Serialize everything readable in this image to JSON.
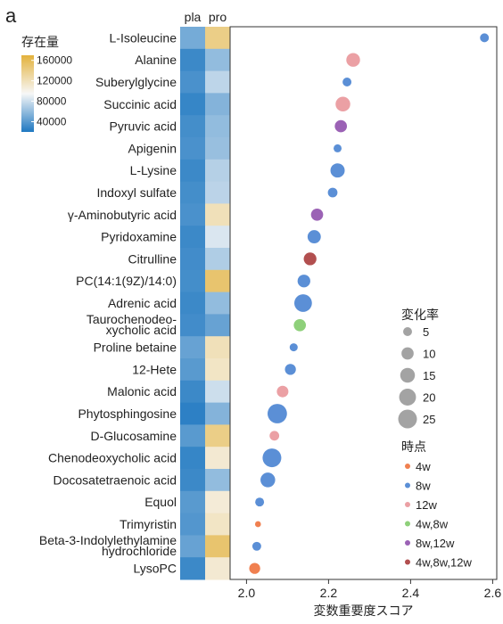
{
  "panel_label": "a",
  "chart_data": {
    "type": "scatter",
    "xlabel": "変数重要度スコア",
    "xlim": [
      1.96,
      2.61
    ],
    "xticks": [
      2.0,
      2.2,
      2.4,
      2.6
    ],
    "xtick_labels": [
      "2.0",
      "2.2",
      "2.4",
      "2.6"
    ],
    "heatmap": {
      "columns": [
        "pla",
        "pro"
      ],
      "legend_title": "存在量",
      "legend_ticks": [
        160000,
        120000,
        80000,
        40000
      ],
      "legend_tick_labels": [
        "160000",
        "120000",
        "80000",
        "40000"
      ],
      "range": [
        20000,
        170000
      ],
      "colors": {
        "low": "#1f78c1",
        "mid": "#f7f7f7",
        "high": "#e3b23c"
      }
    },
    "rows": [
      {
        "label": "L-Isoleucine",
        "label_lines": [
          "L-Isoleucine"
        ],
        "vip": 2.58,
        "size": 5,
        "timepoint": "8w",
        "pla": 50000,
        "pro": 140000
      },
      {
        "label": "Alanine",
        "label_lines": [
          "Alanine"
        ],
        "vip": 2.26,
        "size": 13,
        "timepoint": "12w",
        "pla": 30000,
        "pro": 60000
      },
      {
        "label": "Suberylglycine",
        "label_lines": [
          "Suberylglycine"
        ],
        "vip": 2.245,
        "size": 5,
        "timepoint": "8w",
        "pla": 35000,
        "pro": 75000
      },
      {
        "label": "Succinic acid",
        "label_lines": [
          "Succinic acid"
        ],
        "vip": 2.235,
        "size": 15,
        "timepoint": "12w",
        "pla": 28000,
        "pro": 55000
      },
      {
        "label": "Pyruvic acid",
        "label_lines": [
          "Pyruvic acid"
        ],
        "vip": 2.23,
        "size": 10,
        "timepoint": "8w,12w",
        "pla": 33000,
        "pro": 60000
      },
      {
        "label": "Apigenin",
        "label_lines": [
          "Apigenin"
        ],
        "vip": 2.222,
        "size": 4,
        "timepoint": "8w",
        "pla": 35000,
        "pro": 62000
      },
      {
        "label": "L-Lysine",
        "label_lines": [
          "L-Lysine"
        ],
        "vip": 2.222,
        "size": 14,
        "timepoint": "8w",
        "pla": 30000,
        "pro": 72000
      },
      {
        "label": "Indoxyl sulfate",
        "label_lines": [
          "Indoxyl sulfate"
        ],
        "vip": 2.21,
        "size": 6,
        "timepoint": "8w",
        "pla": 33000,
        "pro": 74000
      },
      {
        "label": "γ-Aminobutyric acid",
        "label_lines": [
          "γ-Aminobutyric acid"
        ],
        "vip": 2.172,
        "size": 10,
        "timepoint": "8w,12w",
        "pla": 35000,
        "pro": 120000
      },
      {
        "label": "Pyridoxamine",
        "label_lines": [
          "Pyridoxamine"
        ],
        "vip": 2.165,
        "size": 12,
        "timepoint": "8w",
        "pla": 30000,
        "pro": 85000
      },
      {
        "label": "Citrulline",
        "label_lines": [
          "Citrulline"
        ],
        "vip": 2.155,
        "size": 11,
        "timepoint": "4w,8w,12w",
        "pla": 32000,
        "pro": 70000
      },
      {
        "label": "PC(14:1(9Z)/14:0)",
        "label_lines": [
          "PC(14:1(9Z)/14:0)"
        ],
        "vip": 2.14,
        "size": 11,
        "timepoint": "8w",
        "pla": 33000,
        "pro": 150000
      },
      {
        "label": "Adrenic acid",
        "label_lines": [
          "Adrenic acid"
        ],
        "vip": 2.138,
        "size": 22,
        "timepoint": "8w",
        "pla": 30000,
        "pro": 60000
      },
      {
        "label": "Taurochenodeoxycholic acid",
        "label_lines": [
          "Taurochenodeo-",
          "xycholic acid"
        ],
        "vip": 2.13,
        "size": 10,
        "timepoint": "4w,8w",
        "pla": 32000,
        "pro": 45000
      },
      {
        "label": "Proline betaine",
        "label_lines": [
          "Proline betaine"
        ],
        "vip": 2.115,
        "size": 4,
        "timepoint": "8w",
        "pla": 45000,
        "pro": 120000
      },
      {
        "label": "12-Hete",
        "label_lines": [
          "12-Hete"
        ],
        "vip": 2.107,
        "size": 8,
        "timepoint": "8w",
        "pla": 40000,
        "pro": 115000
      },
      {
        "label": "Malonic acid",
        "label_lines": [
          "Malonic acid"
        ],
        "vip": 2.088,
        "size": 9,
        "timepoint": "12w",
        "pla": 30000,
        "pro": 80000
      },
      {
        "label": "Phytosphingosine",
        "label_lines": [
          "Phytosphingosine"
        ],
        "vip": 2.075,
        "size": 27,
        "timepoint": "8w",
        "pla": 25000,
        "pro": 55000
      },
      {
        "label": "D-Glucosamine",
        "label_lines": [
          "D-Glucosamine"
        ],
        "vip": 2.068,
        "size": 6,
        "timepoint": "12w",
        "pla": 40000,
        "pro": 140000
      },
      {
        "label": "Chenodeoxycholic acid",
        "label_lines": [
          "Chenodeoxycholic acid"
        ],
        "vip": 2.062,
        "size": 25,
        "timepoint": "8w",
        "pla": 28000,
        "pro": 110000
      },
      {
        "label": "Docosatetraenoic acid",
        "label_lines": [
          "Docosatetraenoic acid"
        ],
        "vip": 2.052,
        "size": 15,
        "timepoint": "8w",
        "pla": 30000,
        "pro": 60000
      },
      {
        "label": "Equol",
        "label_lines": [
          "Equol"
        ],
        "vip": 2.032,
        "size": 5,
        "timepoint": "8w",
        "pla": 40000,
        "pro": 108000
      },
      {
        "label": "Trimyristin",
        "label_lines": [
          "Trimyristin"
        ],
        "vip": 2.028,
        "size": 2,
        "timepoint": "4w",
        "pla": 38000,
        "pro": 115000
      },
      {
        "label": "Beta-3-Indolylethylamine hydrochloride",
        "label_lines": [
          "Beta-3-Indolylethylamine",
          "hydrochloride"
        ],
        "vip": 2.025,
        "size": 5,
        "timepoint": "8w",
        "pla": 45000,
        "pro": 150000
      },
      {
        "label": "LysoPC",
        "label_lines": [
          "LysoPC"
        ],
        "vip": 2.02,
        "size": 8,
        "timepoint": "4w",
        "pla": 30000,
        "pro": 110000
      }
    ],
    "size_legend": {
      "title": "変化率",
      "values": [
        5,
        10,
        15,
        20,
        25
      ],
      "labels": [
        "5",
        "10",
        "15",
        "20",
        "25"
      ]
    },
    "time_legend": {
      "title": "時点",
      "entries": [
        {
          "label": "4w",
          "color": "#f08050"
        },
        {
          "label": "8w",
          "color": "#5b8fd6"
        },
        {
          "label": "12w",
          "color": "#eba0a4"
        },
        {
          "label": "4w,8w",
          "color": "#8ed07a"
        },
        {
          "label": "8w,12w",
          "color": "#9b62b5"
        },
        {
          "label": "4w,8w,12w",
          "color": "#b24f4f"
        }
      ]
    },
    "grid": false
  }
}
